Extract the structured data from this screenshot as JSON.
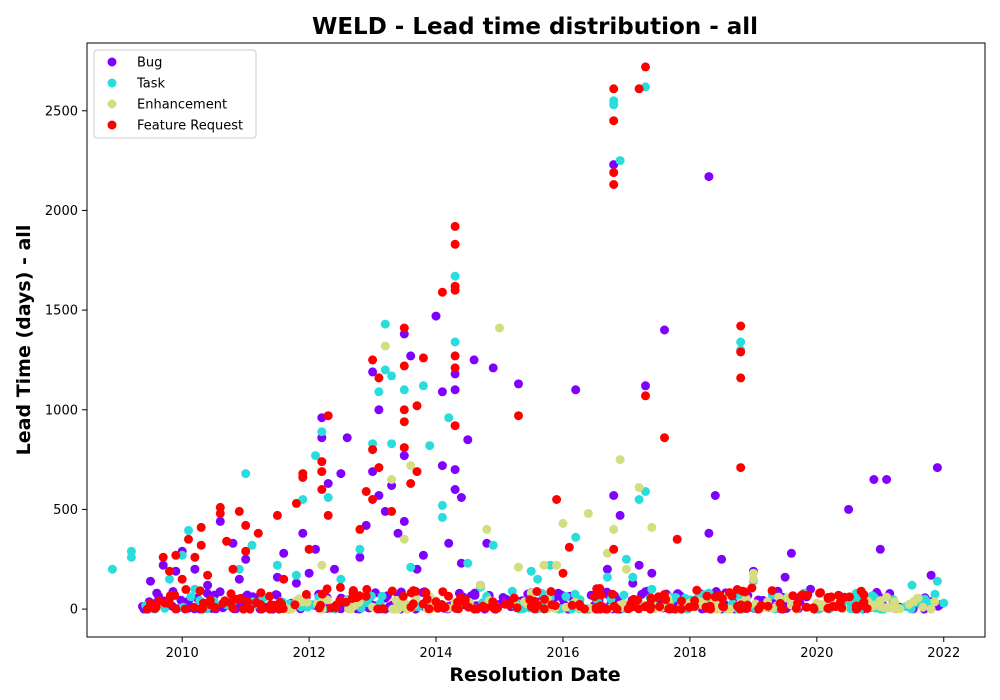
{
  "chart_data": {
    "type": "scatter",
    "title": "WELD - Lead time distribution - all",
    "xlabel": "Resolution Date",
    "ylabel": "Lead Time (days) - all",
    "xlim": [
      2008.5,
      2022.65
    ],
    "ylim": [
      -140,
      2840
    ],
    "x_ticks": [
      2010,
      2012,
      2014,
      2016,
      2018,
      2020,
      2022
    ],
    "y_ticks": [
      0,
      500,
      1000,
      1500,
      2000,
      2500
    ],
    "grid": false,
    "legend_position": "top-left",
    "series": [
      {
        "name": "Bug",
        "color": "#8000ff",
        "points": [
          [
            2009.4,
            0
          ],
          [
            2009.5,
            140
          ],
          [
            2009.6,
            80
          ],
          [
            2009.7,
            220
          ],
          [
            2009.9,
            190
          ],
          [
            2010.0,
            290
          ],
          [
            2010.1,
            40
          ],
          [
            2010.2,
            200
          ],
          [
            2010.4,
            120
          ],
          [
            2010.6,
            440
          ],
          [
            2010.8,
            330
          ],
          [
            2010.9,
            150
          ],
          [
            2011.0,
            250
          ],
          [
            2011.2,
            60
          ],
          [
            2011.5,
            160
          ],
          [
            2011.6,
            280
          ],
          [
            2011.8,
            130
          ],
          [
            2011.9,
            380
          ],
          [
            2012.0,
            180
          ],
          [
            2012.1,
            300
          ],
          [
            2012.2,
            860
          ],
          [
            2012.2,
            960
          ],
          [
            2012.3,
            630
          ],
          [
            2012.4,
            200
          ],
          [
            2012.5,
            680
          ],
          [
            2012.6,
            860
          ],
          [
            2012.7,
            90
          ],
          [
            2012.8,
            260
          ],
          [
            2012.9,
            420
          ],
          [
            2013.0,
            1190
          ],
          [
            2013.0,
            690
          ],
          [
            2013.1,
            1000
          ],
          [
            2013.1,
            570
          ],
          [
            2013.2,
            490
          ],
          [
            2013.3,
            620
          ],
          [
            2013.4,
            380
          ],
          [
            2013.5,
            1380
          ],
          [
            2013.5,
            770
          ],
          [
            2013.5,
            440
          ],
          [
            2013.6,
            1270
          ],
          [
            2013.7,
            200
          ],
          [
            2013.8,
            270
          ],
          [
            2014.0,
            1470
          ],
          [
            2014.1,
            1090
          ],
          [
            2014.1,
            720
          ],
          [
            2014.2,
            330
          ],
          [
            2014.3,
            1180
          ],
          [
            2014.3,
            1100
          ],
          [
            2014.3,
            700
          ],
          [
            2014.3,
            600
          ],
          [
            2014.4,
            560
          ],
          [
            2014.4,
            230
          ],
          [
            2014.5,
            850
          ],
          [
            2014.6,
            1250
          ],
          [
            2014.7,
            120
          ],
          [
            2014.8,
            330
          ],
          [
            2014.9,
            1210
          ],
          [
            2015.1,
            40
          ],
          [
            2015.3,
            1130
          ],
          [
            2015.5,
            30
          ],
          [
            2015.8,
            60
          ],
          [
            2016.0,
            50
          ],
          [
            2016.2,
            1100
          ],
          [
            2016.5,
            20
          ],
          [
            2016.7,
            200
          ],
          [
            2016.8,
            570
          ],
          [
            2016.8,
            2230
          ],
          [
            2016.9,
            470
          ],
          [
            2017.1,
            130
          ],
          [
            2017.2,
            220
          ],
          [
            2017.3,
            1120
          ],
          [
            2017.4,
            180
          ],
          [
            2017.6,
            1400
          ],
          [
            2017.8,
            30
          ],
          [
            2018.1,
            20
          ],
          [
            2018.3,
            2170
          ],
          [
            2018.3,
            380
          ],
          [
            2018.4,
            570
          ],
          [
            2018.5,
            250
          ],
          [
            2018.7,
            40
          ],
          [
            2019.0,
            190
          ],
          [
            2019.2,
            20
          ],
          [
            2019.5,
            160
          ],
          [
            2019.6,
            280
          ],
          [
            2019.9,
            100
          ],
          [
            2020.2,
            20
          ],
          [
            2020.5,
            500
          ],
          [
            2020.9,
            650
          ],
          [
            2021.0,
            300
          ],
          [
            2021.1,
            650
          ],
          [
            2021.3,
            10
          ],
          [
            2021.8,
            170
          ],
          [
            2021.9,
            710
          ]
        ]
      },
      {
        "name": "Task",
        "color": "#2adddd",
        "points": [
          [
            2008.9,
            200
          ],
          [
            2009.2,
            290
          ],
          [
            2009.2,
            260
          ],
          [
            2009.8,
            150
          ],
          [
            2010.0,
            270
          ],
          [
            2010.1,
            395
          ],
          [
            2010.2,
            100
          ],
          [
            2010.5,
            40
          ],
          [
            2010.9,
            200
          ],
          [
            2011.0,
            680
          ],
          [
            2011.1,
            320
          ],
          [
            2011.5,
            220
          ],
          [
            2011.8,
            170
          ],
          [
            2011.9,
            550
          ],
          [
            2012.1,
            770
          ],
          [
            2012.2,
            890
          ],
          [
            2012.3,
            560
          ],
          [
            2012.5,
            150
          ],
          [
            2012.8,
            300
          ],
          [
            2013.0,
            830
          ],
          [
            2013.1,
            1090
          ],
          [
            2013.2,
            1430
          ],
          [
            2013.2,
            1200
          ],
          [
            2013.3,
            1170
          ],
          [
            2013.3,
            830
          ],
          [
            2013.5,
            1100
          ],
          [
            2013.6,
            210
          ],
          [
            2013.8,
            1120
          ],
          [
            2013.9,
            820
          ],
          [
            2014.1,
            520
          ],
          [
            2014.1,
            460
          ],
          [
            2014.2,
            960
          ],
          [
            2014.3,
            1670
          ],
          [
            2014.3,
            1340
          ],
          [
            2014.5,
            230
          ],
          [
            2014.7,
            110
          ],
          [
            2014.9,
            320
          ],
          [
            2015.2,
            90
          ],
          [
            2015.5,
            190
          ],
          [
            2015.6,
            150
          ],
          [
            2015.8,
            220
          ],
          [
            2016.2,
            360
          ],
          [
            2016.5,
            60
          ],
          [
            2016.7,
            160
          ],
          [
            2016.8,
            2550
          ],
          [
            2016.8,
            2530
          ],
          [
            2016.9,
            2250
          ],
          [
            2017.0,
            250
          ],
          [
            2017.1,
            160
          ],
          [
            2017.2,
            550
          ],
          [
            2017.3,
            2620
          ],
          [
            2017.3,
            590
          ],
          [
            2017.4,
            100
          ],
          [
            2017.7,
            60
          ],
          [
            2018.0,
            30
          ],
          [
            2018.3,
            80
          ],
          [
            2018.8,
            1340
          ],
          [
            2018.8,
            1300
          ],
          [
            2019.0,
            140
          ],
          [
            2019.3,
            70
          ],
          [
            2019.8,
            80
          ],
          [
            2020.2,
            0
          ],
          [
            2020.6,
            0
          ],
          [
            2021.0,
            0
          ],
          [
            2021.5,
            120
          ],
          [
            2021.7,
            50
          ],
          [
            2021.9,
            140
          ],
          [
            2022.0,
            30
          ]
        ]
      },
      {
        "name": "Enhancement",
        "color": "#d4dd80",
        "points": [
          [
            2011.8,
            30
          ],
          [
            2012.2,
            220
          ],
          [
            2012.6,
            40
          ],
          [
            2013.0,
            10
          ],
          [
            2013.2,
            1320
          ],
          [
            2013.3,
            650
          ],
          [
            2013.5,
            350
          ],
          [
            2013.6,
            720
          ],
          [
            2013.9,
            60
          ],
          [
            2014.3,
            30
          ],
          [
            2014.7,
            120
          ],
          [
            2014.8,
            400
          ],
          [
            2015.0,
            1410
          ],
          [
            2015.3,
            210
          ],
          [
            2015.5,
            80
          ],
          [
            2015.7,
            220
          ],
          [
            2015.8,
            10
          ],
          [
            2015.9,
            220
          ],
          [
            2016.0,
            430
          ],
          [
            2016.4,
            480
          ],
          [
            2016.7,
            280
          ],
          [
            2016.8,
            400
          ],
          [
            2016.9,
            750
          ],
          [
            2016.9,
            20
          ],
          [
            2017.0,
            200
          ],
          [
            2017.2,
            610
          ],
          [
            2017.4,
            410
          ],
          [
            2017.5,
            10
          ],
          [
            2018.0,
            30
          ],
          [
            2018.2,
            20
          ],
          [
            2018.6,
            70
          ],
          [
            2018.8,
            30
          ],
          [
            2019.0,
            180
          ],
          [
            2019.0,
            150
          ],
          [
            2019.2,
            10
          ],
          [
            2019.4,
            60
          ],
          [
            2019.6,
            20
          ],
          [
            2020.0,
            30
          ],
          [
            2020.8,
            40
          ],
          [
            2021.1,
            60
          ],
          [
            2021.8,
            0
          ]
        ]
      },
      {
        "name": "Feature Request",
        "color": "#ff0000",
        "points": [
          [
            2009.5,
            30
          ],
          [
            2009.7,
            260
          ],
          [
            2009.8,
            190
          ],
          [
            2009.9,
            270
          ],
          [
            2010.0,
            150
          ],
          [
            2010.1,
            350
          ],
          [
            2010.2,
            260
          ],
          [
            2010.3,
            410
          ],
          [
            2010.3,
            320
          ],
          [
            2010.4,
            170
          ],
          [
            2010.6,
            510
          ],
          [
            2010.6,
            480
          ],
          [
            2010.7,
            340
          ],
          [
            2010.8,
            200
          ],
          [
            2010.9,
            490
          ],
          [
            2011.0,
            420
          ],
          [
            2011.0,
            290
          ],
          [
            2011.2,
            380
          ],
          [
            2011.5,
            470
          ],
          [
            2011.6,
            150
          ],
          [
            2011.8,
            530
          ],
          [
            2011.9,
            680
          ],
          [
            2011.9,
            660
          ],
          [
            2012.0,
            300
          ],
          [
            2012.2,
            740
          ],
          [
            2012.2,
            690
          ],
          [
            2012.2,
            600
          ],
          [
            2012.3,
            470
          ],
          [
            2012.3,
            970
          ],
          [
            2012.8,
            400
          ],
          [
            2012.9,
            590
          ],
          [
            2013.0,
            800
          ],
          [
            2013.0,
            550
          ],
          [
            2013.0,
            1250
          ],
          [
            2013.1,
            710
          ],
          [
            2013.1,
            1160
          ],
          [
            2013.3,
            490
          ],
          [
            2013.5,
            1410
          ],
          [
            2013.5,
            1220
          ],
          [
            2013.5,
            1000
          ],
          [
            2013.5,
            940
          ],
          [
            2013.5,
            810
          ],
          [
            2013.6,
            630
          ],
          [
            2013.7,
            690
          ],
          [
            2013.7,
            1020
          ],
          [
            2013.8,
            1260
          ],
          [
            2014.1,
            1590
          ],
          [
            2014.3,
            1920
          ],
          [
            2014.3,
            1830
          ],
          [
            2014.3,
            1620
          ],
          [
            2014.3,
            1600
          ],
          [
            2014.3,
            1270
          ],
          [
            2014.3,
            1210
          ],
          [
            2014.3,
            920
          ],
          [
            2014.9,
            30
          ],
          [
            2015.3,
            970
          ],
          [
            2015.6,
            20
          ],
          [
            2015.9,
            550
          ],
          [
            2016.0,
            180
          ],
          [
            2016.1,
            310
          ],
          [
            2016.6,
            70
          ],
          [
            2016.8,
            2610
          ],
          [
            2016.8,
            2450
          ],
          [
            2016.8,
            2190
          ],
          [
            2016.8,
            2130
          ],
          [
            2016.8,
            300
          ],
          [
            2017.2,
            2610
          ],
          [
            2017.3,
            2720
          ],
          [
            2017.3,
            1070
          ],
          [
            2017.6,
            860
          ],
          [
            2017.8,
            350
          ],
          [
            2018.8,
            1420
          ],
          [
            2018.8,
            1290
          ],
          [
            2018.8,
            1160
          ],
          [
            2018.8,
            710
          ],
          [
            2020.7,
            90
          ]
        ]
      }
    ],
    "baseline_clusters": [
      {
        "series": 0,
        "x_range": [
          2009.3,
          2022.0
        ],
        "y_range": [
          0,
          90
        ],
        "count": 260
      },
      {
        "series": 1,
        "x_range": [
          2009.4,
          2022.0
        ],
        "y_range": [
          0,
          80
        ],
        "count": 150
      },
      {
        "series": 2,
        "x_range": [
          2011.5,
          2021.9
        ],
        "y_range": [
          0,
          60
        ],
        "count": 130
      },
      {
        "series": 3,
        "x_range": [
          2009.4,
          2020.8
        ],
        "y_range": [
          0,
          110
        ],
        "count": 220
      }
    ]
  }
}
